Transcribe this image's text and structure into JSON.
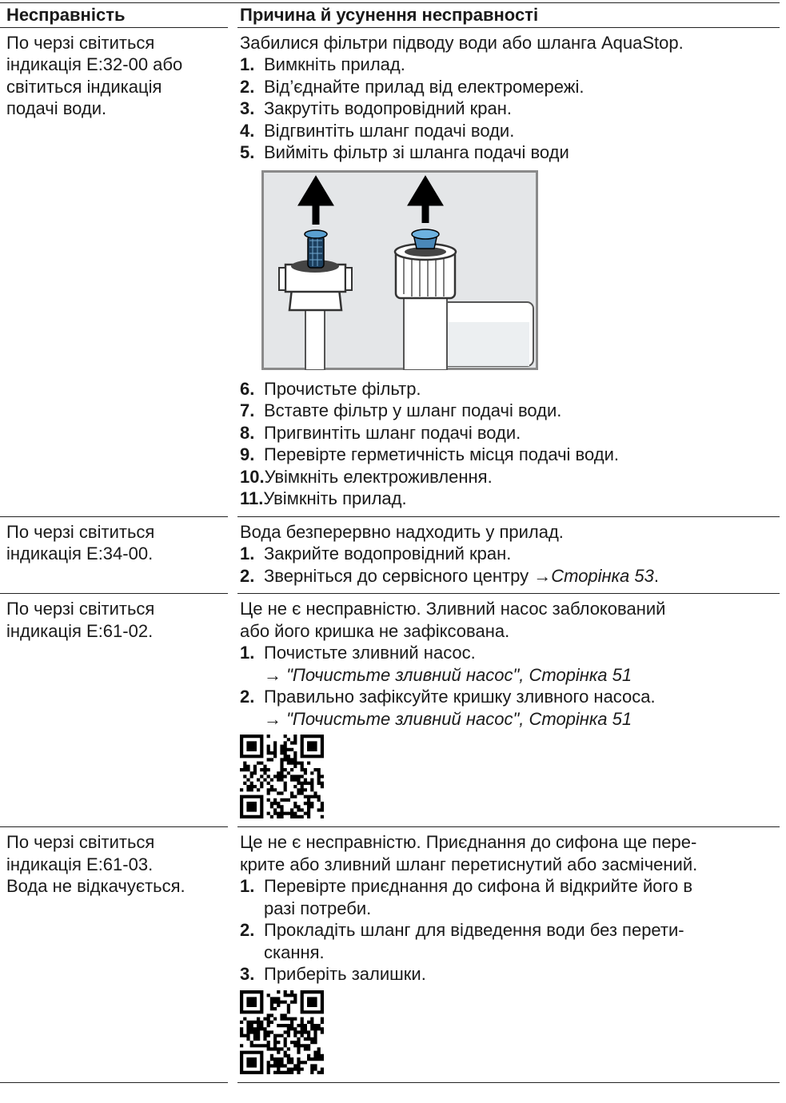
{
  "table": {
    "header": [
      "Несправність",
      "Причина й усунення несправності"
    ],
    "rows": [
      {
        "fault": [
          "По черзі світиться",
          "індикація E:32-00 або",
          "світиться індикація",
          "подачі води."
        ],
        "cause": [
          "Забилися фільтри підводу води або шланга AquaStop."
        ],
        "steps": [
          {
            "num": "1.",
            "lines": [
              "Вимкніть прилад."
            ]
          },
          {
            "num": "2.",
            "lines": [
              "Від’єднайте прилад від електромережі."
            ]
          },
          {
            "num": "3.",
            "lines": [
              "Закрутіть водопровідний кран."
            ]
          },
          {
            "num": "4.",
            "lines": [
              "Відгвинтіть шланг подачі води."
            ]
          },
          {
            "num": "5.",
            "lines": [
              "Вийміть фільтр зі шланга подачі води"
            ]
          }
        ],
        "steps_after": [
          {
            "num": "6.",
            "lines": [
              "Прочистьте фільтр."
            ]
          },
          {
            "num": "7.",
            "lines": [
              "Вставте фільтр у шланг подачі води."
            ]
          },
          {
            "num": "8.",
            "lines": [
              "Пригвинтіть шланг подачі води."
            ]
          },
          {
            "num": "9.",
            "lines": [
              "Перевірте герметичність місця подачі води."
            ]
          },
          {
            "num": "10.",
            "lines": [
              "Увімкніть електроживлення."
            ]
          },
          {
            "num": "11.",
            "lines": [
              "Увімкніть прилад."
            ]
          }
        ]
      },
      {
        "fault": [
          "По черзі світиться",
          "індикація E:34-00."
        ],
        "cause": [
          "Вода безперервно надходить у прилад."
        ],
        "steps": [
          {
            "num": "1.",
            "lines": [
              "Закрийте водопровідний кран."
            ]
          },
          {
            "num": "2.",
            "lines": [
              "Зверніться до сервісного центру"
            ],
            "link": {
              "arrow": "→",
              "text": "Сторінка 53",
              "end": "."
            }
          }
        ]
      },
      {
        "fault": [
          "По черзі світиться",
          "індикація E:61-02."
        ],
        "cause": [
          "Це не є несправністю. Зливний насос заблокований",
          "або його кришка не зафіксована."
        ],
        "steps": [
          {
            "num": "1.",
            "lines": [
              "Почистьте зливний насос."
            ],
            "ref": {
              "arrow": "→",
              "text": "\"Почистьте зливний насос\", Сторінка 51"
            }
          },
          {
            "num": "2.",
            "lines": [
              "Правильно зафіксуйте кришку зливного насоса."
            ],
            "ref": {
              "arrow": "→",
              "text": "\"Почистьте зливний насос\", Сторінка 51"
            }
          }
        ]
      },
      {
        "fault": [
          "По черзі світиться",
          "індикація E:61-03.",
          "Вода не відкачується."
        ],
        "cause": [
          "Це не є несправністю. Приєднання до сифона ще пере-",
          "крите або зливний шланг перетиснутий або засмічений."
        ],
        "steps": [
          {
            "num": "1.",
            "lines": [
              "Перевірте приєднання до сифона й відкрийте його в",
              "разі потреби."
            ]
          },
          {
            "num": "2.",
            "lines": [
              "Прокладіть шланг для відведення води без перети-",
              "скання."
            ]
          },
          {
            "num": "3.",
            "lines": [
              "Приберіть залишки."
            ]
          }
        ]
      }
    ]
  }
}
